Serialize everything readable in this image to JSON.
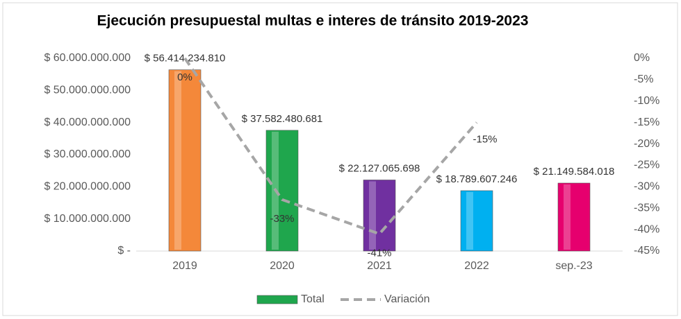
{
  "chart_data": {
    "type": "bar",
    "title": "Ejecución presupuestal multas e interes de tránsito 2019-2023",
    "categories": [
      "2019",
      "2020",
      "2021",
      "2022",
      "sep.-23"
    ],
    "series": [
      {
        "name": "Total",
        "type": "bar",
        "colors": [
          "#f4883a",
          "#1fa64d",
          "#7030a0",
          "#00b0f0",
          "#e6006e"
        ],
        "values": [
          56414234810,
          37582480681,
          22127065698,
          18789607246,
          21149584018
        ],
        "value_labels": [
          "$ 56.414.234.810",
          "$ 37.582.480.681",
          "$ 22.127.065.698",
          "$ 18.789.607.246",
          "$ 21.149.584.018"
        ]
      },
      {
        "name": "Variación",
        "type": "line",
        "axis": "y2",
        "color": "#a6a6a6",
        "dashed": true,
        "values": [
          0,
          -33,
          -41,
          -15,
          null
        ],
        "value_labels": [
          "0%",
          "-33%",
          "-41%",
          "-15%",
          null
        ]
      }
    ],
    "ylim": [
      0,
      60000000000
    ],
    "yticks": [
      {
        "value": 0,
        "label": "$ -"
      },
      {
        "value": 10000000000,
        "label": "$ 10.000.000.000"
      },
      {
        "value": 20000000000,
        "label": "$ 20.000.000.000"
      },
      {
        "value": 30000000000,
        "label": "$ 30.000.000.000"
      },
      {
        "value": 40000000000,
        "label": "$ 40.000.000.000"
      },
      {
        "value": 50000000000,
        "label": "$ 50.000.000.000"
      },
      {
        "value": 60000000000,
        "label": "$ 60.000.000.000"
      }
    ],
    "y2lim": [
      -45,
      0
    ],
    "y2ticks": [
      {
        "value": 0,
        "label": "0%"
      },
      {
        "value": -5,
        "label": "-5%"
      },
      {
        "value": -10,
        "label": "-10%"
      },
      {
        "value": -15,
        "label": "-15%"
      },
      {
        "value": -20,
        "label": "-20%"
      },
      {
        "value": -25,
        "label": "-25%"
      },
      {
        "value": -30,
        "label": "-30%"
      },
      {
        "value": -35,
        "label": "-35%"
      },
      {
        "value": -40,
        "label": "-40%"
      },
      {
        "value": -45,
        "label": "-45%"
      }
    ],
    "grid": false,
    "legend": "bottom"
  }
}
